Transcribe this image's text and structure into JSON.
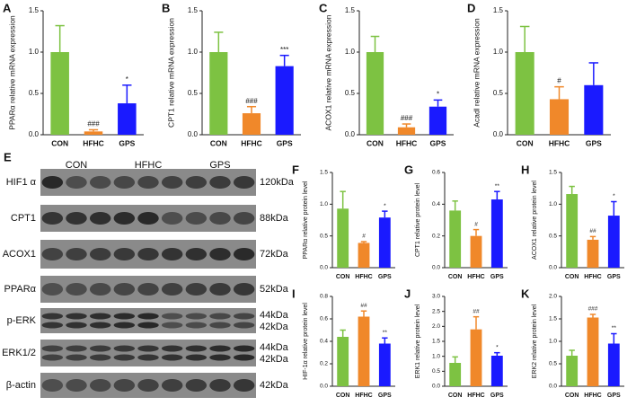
{
  "chart_data": [
    {
      "type": "bar",
      "panel": "A",
      "y_label": "PPARα relative mRNA expression",
      "categories": [
        "CON",
        "HFHC",
        "GPS"
      ],
      "values": [
        1.0,
        0.04,
        0.38
      ],
      "errors": [
        0.32,
        0.02,
        0.22
      ],
      "significance": [
        null,
        "###",
        "*"
      ],
      "colors": [
        "#7dc242",
        "#f0882a",
        "#1a1aff"
      ],
      "ylim": [
        0,
        1.5
      ],
      "yticks": [
        {
          "value": 0,
          "label": "0.0"
        },
        0.5,
        {
          "value": 1,
          "label": "1.0"
        },
        1.5
      ]
    },
    {
      "type": "bar",
      "panel": "B",
      "y_label": "CPT1 relative mRNA expression",
      "categories": [
        "CON",
        "HFHC",
        "GPS"
      ],
      "values": [
        1.0,
        0.26,
        0.83
      ],
      "errors": [
        0.24,
        0.08,
        0.13
      ],
      "significance": [
        null,
        "###",
        "***"
      ],
      "colors": [
        "#7dc242",
        "#f0882a",
        "#1a1aff"
      ],
      "ylim": [
        0,
        1.5
      ],
      "yticks": [
        {
          "value": 0,
          "label": "0.0"
        },
        0.5,
        {
          "value": 1,
          "label": "1.0"
        },
        1.5
      ]
    },
    {
      "type": "bar",
      "panel": "C",
      "y_label": "ACOX1 relative mRNA expression",
      "categories": [
        "CON",
        "HFHC",
        "GPS"
      ],
      "values": [
        1.0,
        0.09,
        0.34
      ],
      "errors": [
        0.19,
        0.04,
        0.08
      ],
      "significance": [
        null,
        "###",
        "*"
      ],
      "colors": [
        "#7dc242",
        "#f0882a",
        "#1a1aff"
      ],
      "ylim": [
        0,
        1.5
      ],
      "yticks": [
        {
          "value": 0,
          "label": "0.0"
        },
        0.5,
        {
          "value": 1,
          "label": "1.0"
        },
        1.5
      ]
    },
    {
      "type": "bar",
      "panel": "D",
      "y_label": "Acadl relative mRNA expression",
      "categories": [
        "CON",
        "HFHC",
        "GPS"
      ],
      "values": [
        1.0,
        0.43,
        0.6
      ],
      "errors": [
        0.31,
        0.15,
        0.27
      ],
      "significance": [
        null,
        "#",
        null
      ],
      "colors": [
        "#7dc242",
        "#f0882a",
        "#1a1aff"
      ],
      "ylim": [
        0,
        1.5
      ],
      "yticks": [
        {
          "value": 0,
          "label": "0.0"
        },
        0.5,
        {
          "value": 1,
          "label": "1.0"
        },
        1.5
      ]
    },
    {
      "type": "bar",
      "panel": "F",
      "y_label": "PPARα relative protein level",
      "categories": [
        "CON",
        "HFHC",
        "GPS"
      ],
      "values": [
        0.93,
        0.39,
        0.79
      ],
      "errors": [
        0.27,
        0.02,
        0.1
      ],
      "significance": [
        null,
        "#",
        "*"
      ],
      "colors": [
        "#7dc242",
        "#f0882a",
        "#1a1aff"
      ],
      "ylim": [
        0,
        1.5
      ],
      "yticks": [
        {
          "value": 0,
          "label": "0.0"
        },
        0.5,
        {
          "value": 1,
          "label": "1.0"
        },
        1.5
      ]
    },
    {
      "type": "bar",
      "panel": "G",
      "y_label": "CPT1 relative protein level",
      "categories": [
        "CON",
        "HFHC",
        "GPS"
      ],
      "values": [
        0.36,
        0.2,
        0.43
      ],
      "errors": [
        0.06,
        0.04,
        0.05
      ],
      "significance": [
        null,
        "#",
        "**"
      ],
      "colors": [
        "#7dc242",
        "#f0882a",
        "#1a1aff"
      ],
      "ylim": [
        0,
        0.6
      ],
      "yticks": [
        {
          "value": 0,
          "label": "0.0"
        },
        0.2,
        0.4,
        0.6
      ]
    },
    {
      "type": "bar",
      "panel": "H",
      "y_label": "ACOX1 relative protein level",
      "categories": [
        "CON",
        "HFHC",
        "GPS"
      ],
      "values": [
        1.16,
        0.44,
        0.82
      ],
      "errors": [
        0.12,
        0.05,
        0.22
      ],
      "significance": [
        null,
        "##",
        "*"
      ],
      "colors": [
        "#7dc242",
        "#f0882a",
        "#1a1aff"
      ],
      "ylim": [
        0,
        1.5
      ],
      "yticks": [
        {
          "value": 0,
          "label": "0.0"
        },
        0.5,
        {
          "value": 1,
          "label": "1.0"
        },
        1.5
      ]
    },
    {
      "type": "bar",
      "panel": "I",
      "y_label": "HIF-1α relative protein level",
      "categories": [
        "CON",
        "HFHC",
        "GPS"
      ],
      "values": [
        0.44,
        0.62,
        0.38
      ],
      "errors": [
        0.06,
        0.05,
        0.05
      ],
      "significance": [
        null,
        "##",
        "**"
      ],
      "colors": [
        "#7dc242",
        "#f0882a",
        "#1a1aff"
      ],
      "ylim": [
        0,
        0.8
      ],
      "yticks": [
        {
          "value": 0,
          "label": "0.0"
        },
        0.2,
        0.4,
        0.6,
        0.8
      ]
    },
    {
      "type": "bar",
      "panel": "J",
      "y_label": "ERK1 relative protein level",
      "categories": [
        "CON",
        "HFHC",
        "GPS"
      ],
      "values": [
        0.78,
        1.9,
        1.02
      ],
      "errors": [
        0.2,
        0.42,
        0.1
      ],
      "significance": [
        null,
        "##",
        "*"
      ],
      "colors": [
        "#7dc242",
        "#f0882a",
        "#1a1aff"
      ],
      "ylim": [
        0,
        3
      ],
      "yticks": [
        {
          "value": 0,
          "label": "0.0"
        },
        0.5,
        {
          "value": 1,
          "label": "1.0"
        },
        1.5,
        {
          "value": 2,
          "label": "2.0"
        },
        2.5,
        {
          "value": 3,
          "label": "3.0"
        }
      ]
    },
    {
      "type": "bar",
      "panel": "K",
      "y_label": "ERK2 relative protein level",
      "categories": [
        "CON",
        "HFHC",
        "GPS"
      ],
      "values": [
        0.68,
        1.53,
        0.95
      ],
      "errors": [
        0.12,
        0.07,
        0.22
      ],
      "significance": [
        null,
        "###",
        "**"
      ],
      "colors": [
        "#7dc242",
        "#f0882a",
        "#1a1aff"
      ],
      "ylim": [
        0,
        2
      ],
      "yticks": [
        {
          "value": 0,
          "label": "0.0"
        },
        0.5,
        {
          "value": 1,
          "label": "1.0"
        },
        1.5,
        {
          "value": 2,
          "label": "2.0"
        }
      ]
    }
  ],
  "blot": {
    "panel": "E",
    "groups": [
      "CON",
      "HFHC",
      "GPS"
    ],
    "rows": [
      {
        "label": "HIF1 α",
        "sizes": [
          "120kDa"
        ]
      },
      {
        "label": "CPT1",
        "sizes": [
          "88kDa"
        ]
      },
      {
        "label": "ACOX1",
        "sizes": [
          "72kDa"
        ]
      },
      {
        "label": "PPARα",
        "sizes": [
          "52kDa"
        ]
      },
      {
        "label": "p-ERK",
        "sizes": [
          "44kDa",
          "42kDa"
        ]
      },
      {
        "label": "ERK1/2",
        "sizes": [
          "44kDa",
          "42kDa"
        ]
      },
      {
        "label": "β-actin",
        "sizes": [
          "42kDa"
        ]
      }
    ]
  }
}
